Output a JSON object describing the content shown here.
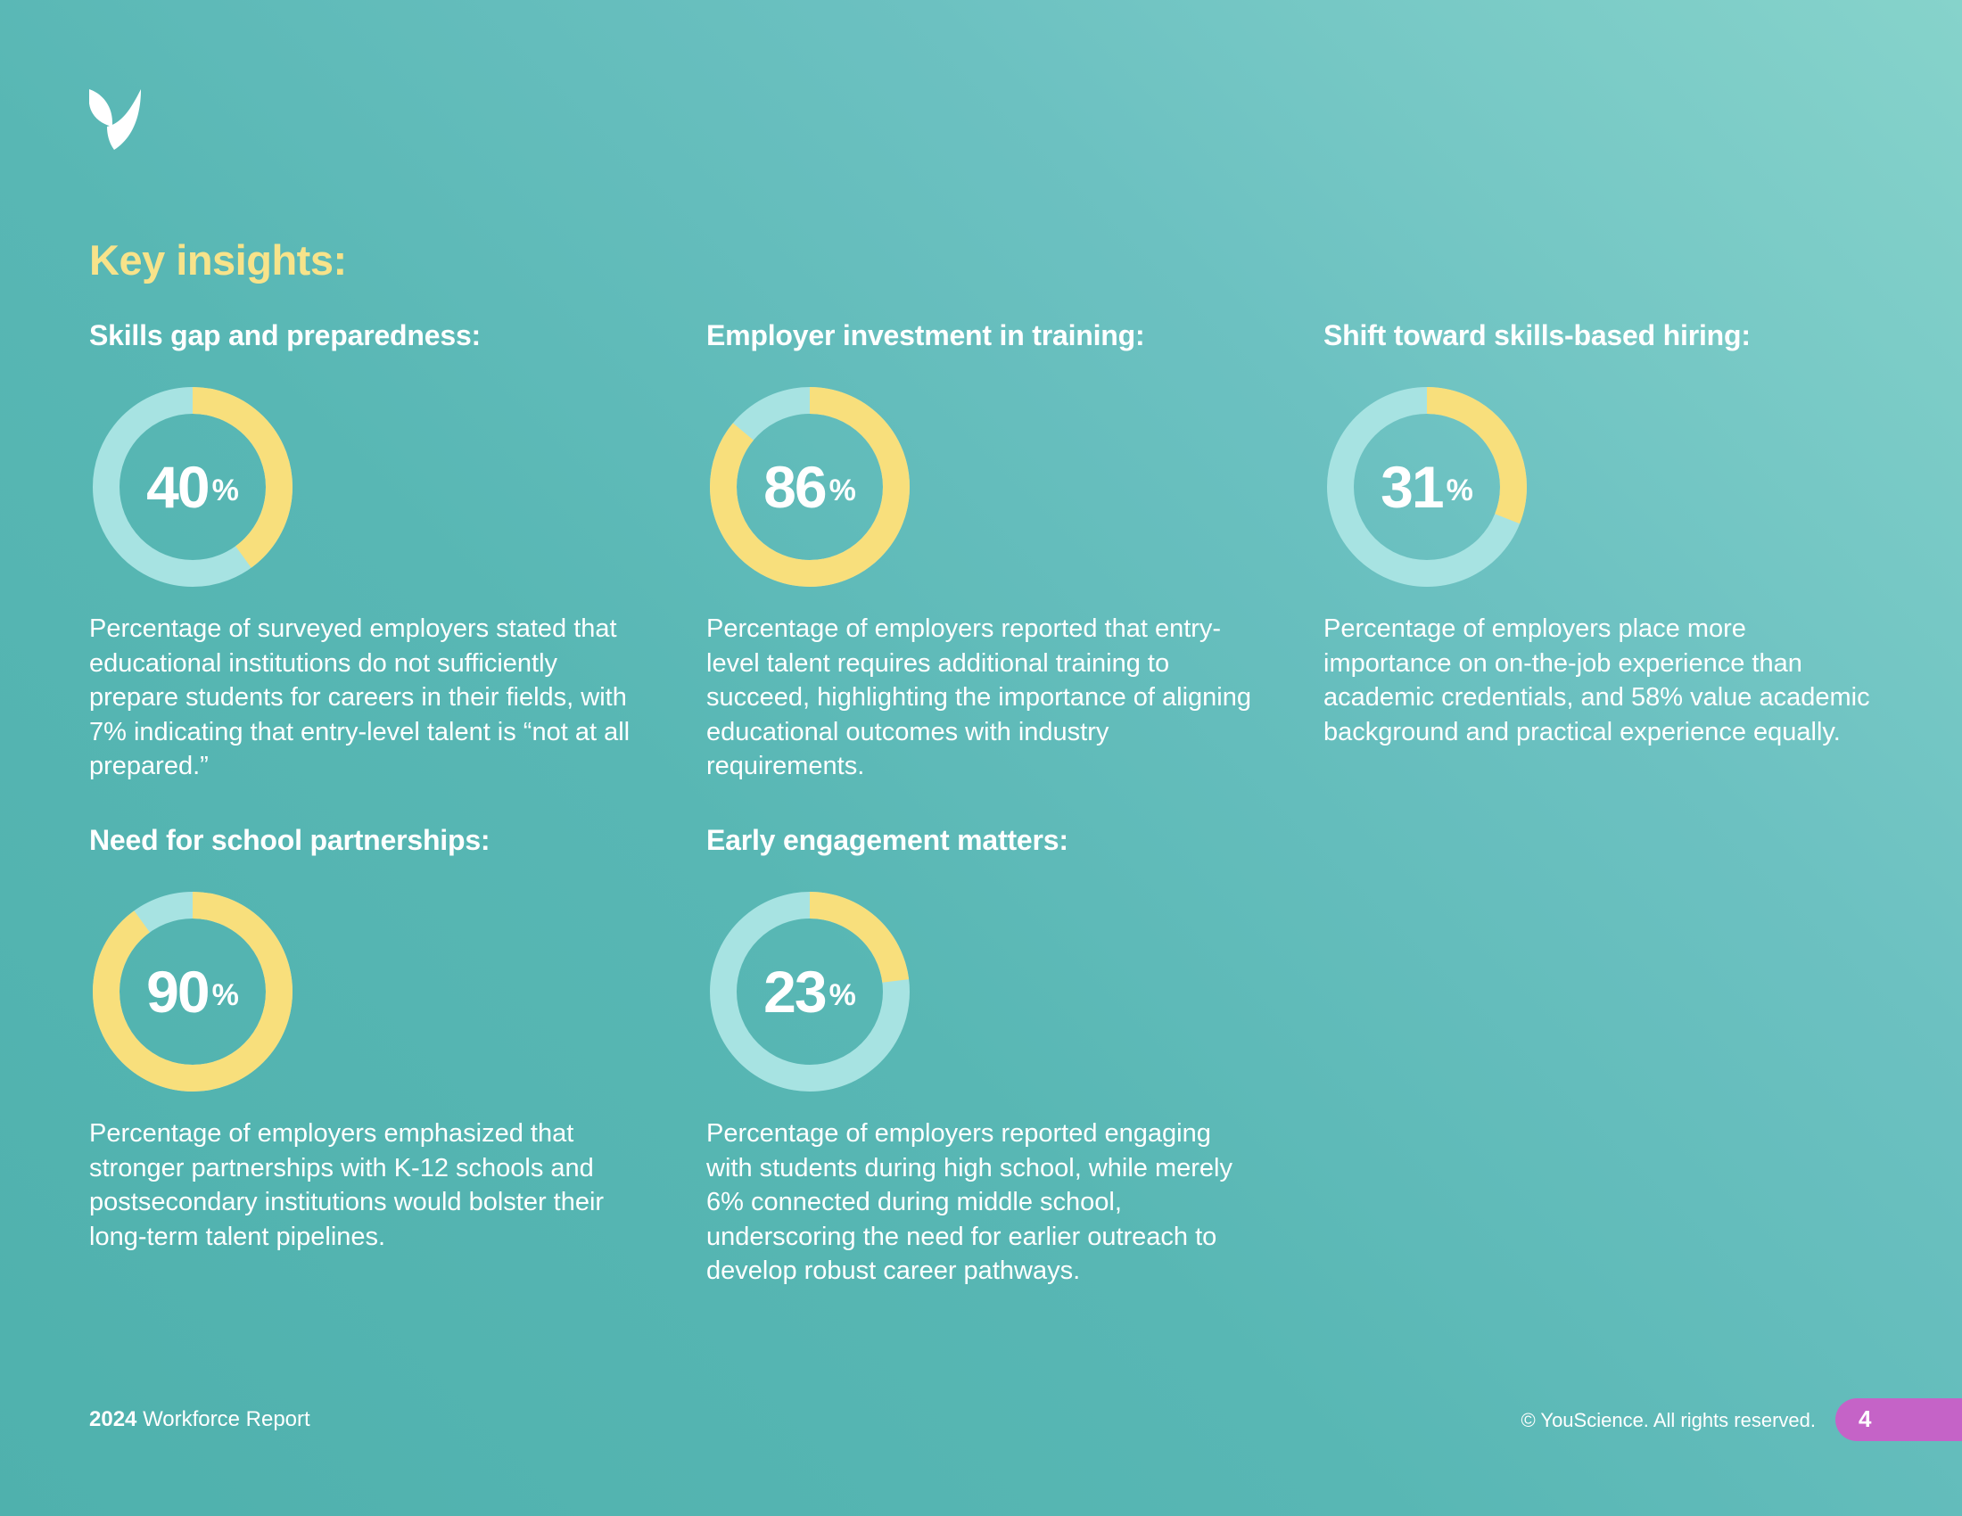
{
  "logo": {
    "icon": "youscience-leaf-logo",
    "color": "#ffffff"
  },
  "heading": "Key insights:",
  "colors": {
    "ring_fill": "#f8df7c",
    "ring_track": "#a7e3e2",
    "heading": "#f7e38a",
    "page_tab": "#c563c7"
  },
  "insights": [
    {
      "title": "Skills gap and preparedness:",
      "value": 40,
      "value_text": "40",
      "unit": "%",
      "description": "Percentage of surveyed employers stated that educational institutions do not sufficiently prepare students for careers in their fields, with 7% indicating that entry-level talent is “not at all prepared.”"
    },
    {
      "title": "Employer investment in training:",
      "value": 86,
      "value_text": "86",
      "unit": "%",
      "description": "Percentage of employers reported that entry-level talent requires additional training to succeed, highlighting the importance of aligning educational outcomes with industry requirements."
    },
    {
      "title": "Shift toward skills-based hiring:",
      "value": 31,
      "value_text": "31",
      "unit": "%",
      "description": "Percentage of employers place more importance on on-the-job experience than academic credentials, and 58% value academic background and practical experience equally."
    },
    {
      "title": "Need for school partnerships:",
      "value": 90,
      "value_text": "90",
      "unit": "%",
      "description": "Percentage of employers emphasized that stronger partnerships with K-12 schools and postsecondary institutions would bolster their long-term talent pipelines."
    },
    {
      "title": "Early engagement matters:",
      "value": 23,
      "value_text": "23",
      "unit": "%",
      "description": "Percentage of employers reported engaging with students during high school, while merely 6% connected during middle school, underscoring the need for earlier outreach to develop robust career pathways."
    }
  ],
  "footer": {
    "report_year": "2024",
    "report_name": "Workforce Report",
    "copyright": "© YouScience. All rights reserved.",
    "page_number": "4"
  }
}
